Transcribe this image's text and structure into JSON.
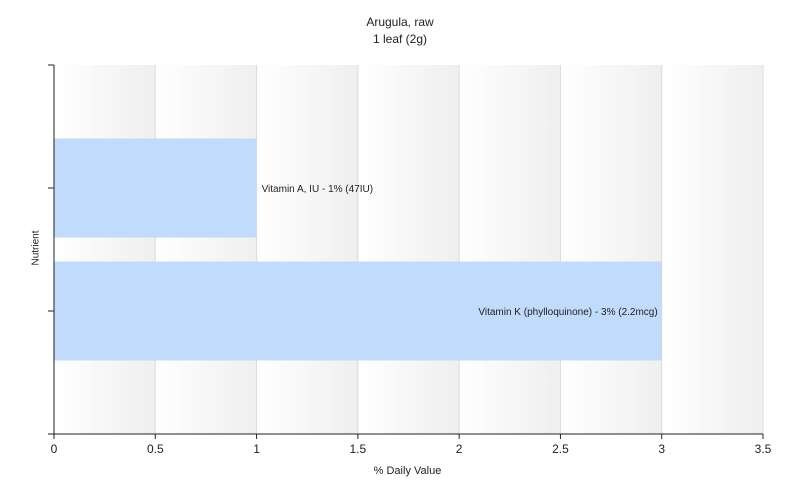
{
  "chart_data": {
    "type": "bar",
    "orientation": "horizontal",
    "title": "Arugula, raw",
    "subtitle": "1 leaf (2g)",
    "xlabel": "% Daily Value",
    "ylabel": "Nutrient",
    "xlim": [
      0,
      3.5
    ],
    "xticks": [
      "0",
      "0.5",
      "1",
      "1.5",
      "2",
      "2.5",
      "3",
      "3.5"
    ],
    "grid": true,
    "bar_color": "#c0dbfb",
    "categories": [
      "Vitamin A, IU",
      "Vitamin K (phylloquinone)"
    ],
    "values": [
      1,
      3
    ],
    "data_labels": [
      "Vitamin A, IU - 1% (47IU)",
      "Vitamin K (phylloquinone) - 3% (2.2mcg)"
    ]
  }
}
